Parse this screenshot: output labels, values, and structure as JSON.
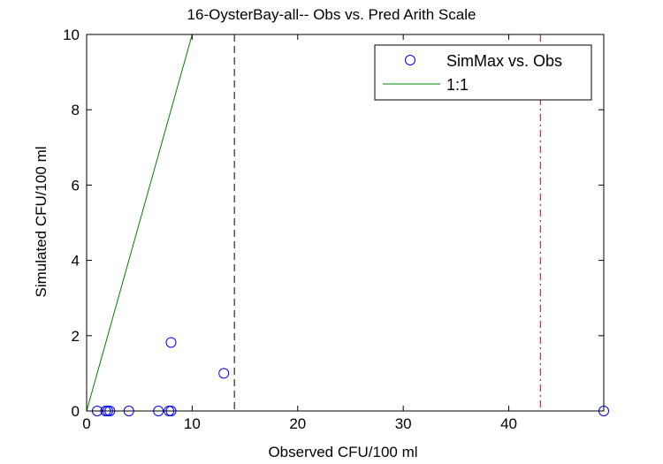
{
  "chart_data": {
    "type": "scatter",
    "title": "16-OysterBay-all-- Obs vs. Pred Arith Scale",
    "xlabel": "Observed CFU/100 ml",
    "ylabel": "Simulated CFU/100 ml",
    "xlim": [
      0,
      49
    ],
    "ylim": [
      0,
      10
    ],
    "xticks": [
      0,
      10,
      20,
      30,
      40
    ],
    "yticks": [
      0,
      2,
      4,
      6,
      8,
      10
    ],
    "grid": false,
    "legend_position": "top-right",
    "series": [
      {
        "name": "SimMax vs. Obs",
        "kind": "scatter",
        "marker": "circle",
        "color": "#0000ff",
        "points": [
          [
            1,
            0
          ],
          [
            1.8,
            0
          ],
          [
            2,
            0
          ],
          [
            2.2,
            0
          ],
          [
            4,
            0
          ],
          [
            6.8,
            0
          ],
          [
            7.8,
            0
          ],
          [
            8,
            0
          ],
          [
            8,
            1.82
          ],
          [
            13,
            1
          ],
          [
            49,
            0
          ]
        ]
      },
      {
        "name": "1:1",
        "kind": "line",
        "color": "#008000",
        "points": [
          [
            0,
            0
          ],
          [
            10,
            10
          ]
        ]
      }
    ],
    "reference_lines": [
      {
        "x": 14,
        "style": "dashed",
        "color": "#000000"
      },
      {
        "x": 43,
        "style": "dashdot",
        "color": "#ff0000"
      }
    ]
  }
}
